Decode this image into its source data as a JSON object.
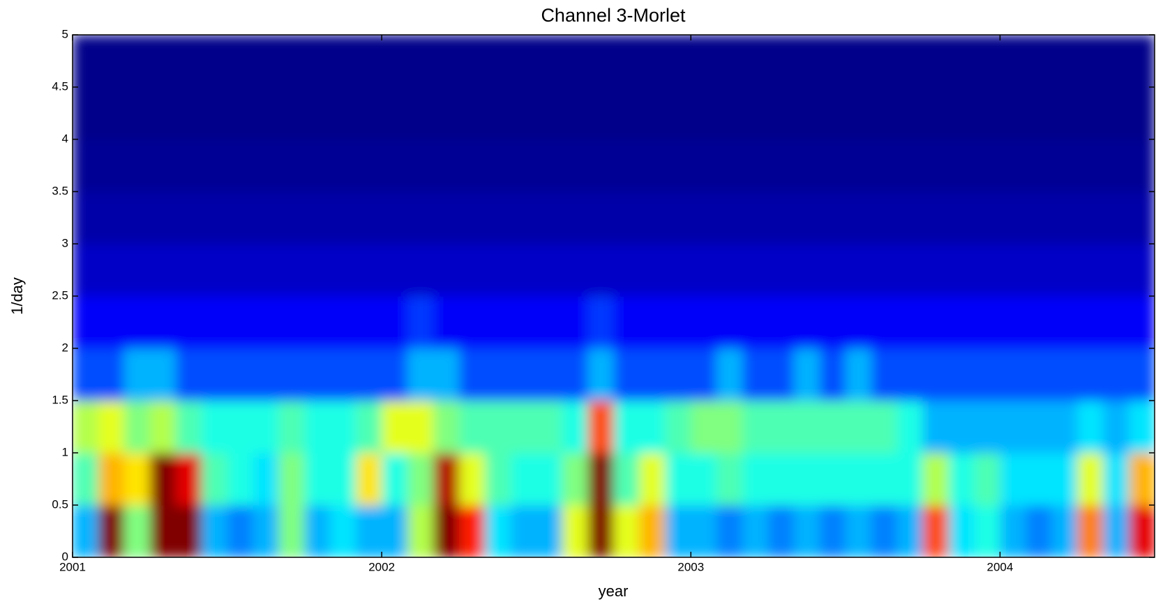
{
  "chart_data": {
    "type": "heatmap",
    "title": "Channel 3-Morlet",
    "x_label": "year",
    "y_label": "1/day",
    "colormap": "jet",
    "xlim": [
      2001,
      2004.5
    ],
    "xticks": [
      2001,
      2002,
      2003,
      2004
    ],
    "ylim": [
      0,
      5
    ],
    "yticks": [
      0,
      0.5,
      1,
      1.5,
      2,
      2.5,
      3,
      3.5,
      4,
      4.5,
      5
    ],
    "z": [
      [
        0.3,
        1,
        0.5,
        1,
        1,
        0.3,
        0.25,
        0.3,
        0.5,
        0.3,
        0.35,
        0.3,
        0.3,
        0.55,
        1,
        0.85,
        0.35,
        0.3,
        0.3,
        0.6,
        1,
        0.6,
        0.7,
        0.3,
        0.3,
        0.25,
        0.3,
        0.25,
        0.3,
        0.25,
        0.3,
        0.25,
        0.3,
        0.8,
        0.35,
        0.4,
        0.3,
        0.25,
        0.3,
        0.75,
        0.3,
        0.9
      ],
      [
        0.45,
        0.7,
        0.65,
        1,
        0.9,
        0.45,
        0.4,
        0.35,
        0.5,
        0.4,
        0.4,
        0.65,
        0.4,
        0.5,
        0.95,
        0.6,
        0.45,
        0.4,
        0.4,
        0.5,
        1,
        0.45,
        0.6,
        0.4,
        0.4,
        0.45,
        0.4,
        0.4,
        0.4,
        0.4,
        0.4,
        0.4,
        0.4,
        0.55,
        0.4,
        0.45,
        0.35,
        0.35,
        0.35,
        0.6,
        0.35,
        0.7
      ],
      [
        0.55,
        0.6,
        0.5,
        0.55,
        0.45,
        0.4,
        0.4,
        0.4,
        0.45,
        0.4,
        0.4,
        0.45,
        0.6,
        0.6,
        0.5,
        0.45,
        0.45,
        0.45,
        0.45,
        0.4,
        0.8,
        0.4,
        0.4,
        0.45,
        0.5,
        0.5,
        0.45,
        0.45,
        0.45,
        0.45,
        0.45,
        0.45,
        0.4,
        0.3,
        0.3,
        0.3,
        0.3,
        0.3,
        0.3,
        0.35,
        0.3,
        0.35
      ],
      [
        0.2,
        0.2,
        0.3,
        0.3,
        0.2,
        0.2,
        0.2,
        0.2,
        0.2,
        0.2,
        0.2,
        0.2,
        0.2,
        0.3,
        0.3,
        0.2,
        0.2,
        0.2,
        0.2,
        0.2,
        0.3,
        0.2,
        0.2,
        0.2,
        0.2,
        0.3,
        0.2,
        0.2,
        0.3,
        0.2,
        0.3,
        0.2,
        0.2,
        0.2,
        0.2,
        0.2,
        0.2,
        0.2,
        0.2,
        0.2,
        0.2,
        0.2
      ],
      [
        0.12,
        0.12,
        0.12,
        0.12,
        0.12,
        0.12,
        0.12,
        0.12,
        0.12,
        0.12,
        0.12,
        0.12,
        0.12,
        0.18,
        0.12,
        0.12,
        0.12,
        0.12,
        0.12,
        0.12,
        0.18,
        0.12,
        0.12,
        0.12,
        0.12,
        0.12,
        0.12,
        0.12,
        0.12,
        0.12,
        0.12,
        0.12,
        0.12,
        0.12,
        0.12,
        0.12,
        0.12,
        0.12,
        0.12,
        0.12,
        0.12,
        0.12
      ],
      [
        0.07,
        0.07,
        0.07,
        0.07,
        0.07,
        0.07,
        0.07,
        0.07,
        0.07,
        0.07,
        0.07,
        0.07,
        0.07,
        0.07,
        0.07,
        0.07,
        0.07,
        0.07,
        0.07,
        0.07,
        0.07,
        0.07,
        0.07,
        0.07,
        0.07,
        0.07,
        0.07,
        0.07,
        0.07,
        0.07,
        0.07,
        0.07,
        0.07,
        0.07,
        0.07,
        0.07,
        0.07,
        0.07,
        0.07,
        0.07,
        0.07,
        0.07
      ],
      [
        0.04,
        0.04,
        0.04,
        0.04,
        0.04,
        0.04,
        0.04,
        0.04,
        0.04,
        0.04,
        0.04,
        0.04,
        0.04,
        0.04,
        0.04,
        0.04,
        0.04,
        0.04,
        0.04,
        0.04,
        0.04,
        0.04,
        0.04,
        0.04,
        0.04,
        0.04,
        0.04,
        0.04,
        0.04,
        0.04,
        0.04,
        0.04,
        0.04,
        0.04,
        0.04,
        0.04,
        0.04,
        0.04,
        0.04,
        0.04,
        0.04,
        0.04
      ],
      [
        0.02,
        0.02,
        0.02,
        0.02,
        0.02,
        0.02,
        0.02,
        0.02,
        0.02,
        0.02,
        0.02,
        0.02,
        0.02,
        0.02,
        0.02,
        0.02,
        0.02,
        0.02,
        0.02,
        0.02,
        0.02,
        0.02,
        0.02,
        0.02,
        0.02,
        0.02,
        0.02,
        0.02,
        0.02,
        0.02,
        0.02,
        0.02,
        0.02,
        0.02,
        0.02,
        0.02,
        0.02,
        0.02,
        0.02,
        0.02,
        0.02,
        0.02
      ],
      [
        0.01,
        0.01,
        0.01,
        0.01,
        0.01,
        0.01,
        0.01,
        0.01,
        0.01,
        0.01,
        0.01,
        0.01,
        0.01,
        0.01,
        0.01,
        0.01,
        0.01,
        0.01,
        0.01,
        0.01,
        0.01,
        0.01,
        0.01,
        0.01,
        0.01,
        0.01,
        0.01,
        0.01,
        0.01,
        0.01,
        0.01,
        0.01,
        0.01,
        0.01,
        0.01,
        0.01,
        0.01,
        0.01,
        0.01,
        0.01,
        0.01,
        0.01
      ],
      [
        0.01,
        0.01,
        0.01,
        0.01,
        0.01,
        0.01,
        0.01,
        0.01,
        0.01,
        0.01,
        0.01,
        0.01,
        0.01,
        0.01,
        0.01,
        0.01,
        0.01,
        0.01,
        0.01,
        0.01,
        0.01,
        0.01,
        0.01,
        0.01,
        0.01,
        0.01,
        0.01,
        0.01,
        0.01,
        0.01,
        0.01,
        0.01,
        0.01,
        0.01,
        0.01,
        0.01,
        0.01,
        0.01,
        0.01,
        0.01,
        0.01,
        0.01
      ]
    ]
  }
}
